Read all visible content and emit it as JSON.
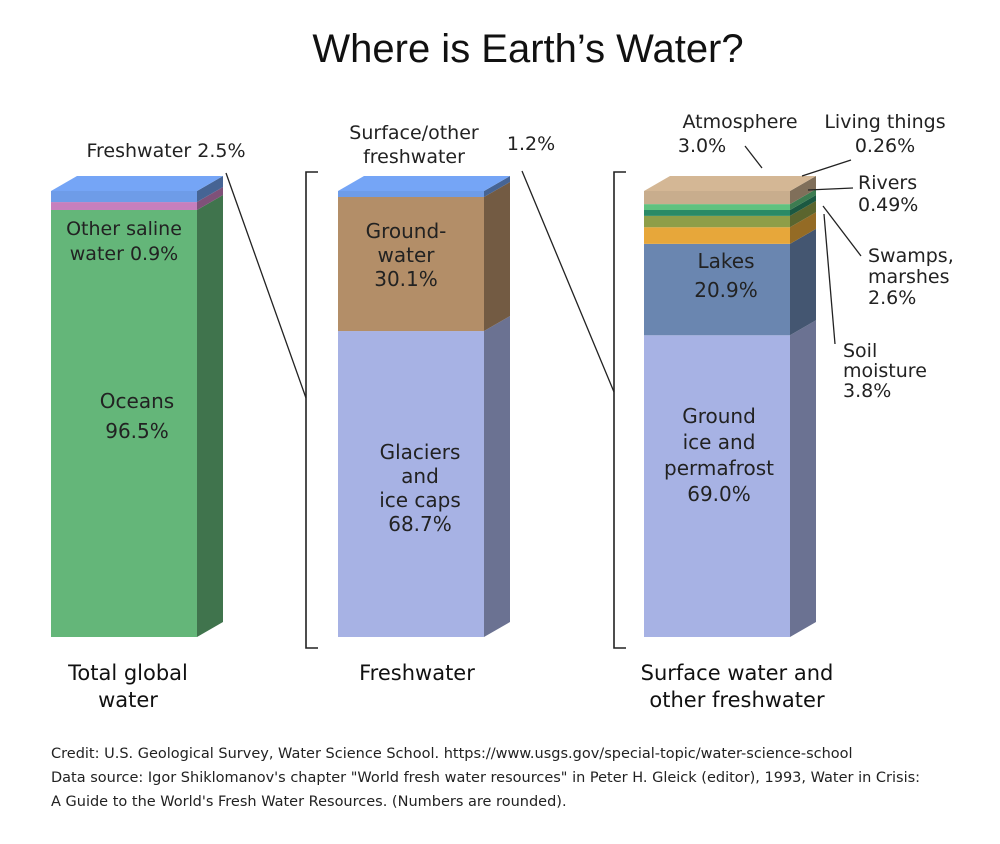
{
  "title": "Where is Earth’s Water?",
  "chart_data": [
    {
      "type": "bar",
      "category": [
        "Total global",
        "water"
      ],
      "segments": [
        {
          "name": "Oceans",
          "value": 96.5,
          "label": [
            "Oceans",
            "96.5%"
          ],
          "color": "#64b679"
        },
        {
          "name": "Other saline water",
          "value": 0.9,
          "label": [
            "Other saline",
            "water 0.9%"
          ],
          "color": "#c77fbd"
        },
        {
          "name": "Freshwater",
          "value": 2.5,
          "label": [
            "Freshwater 2.5%"
          ],
          "color": "#6e9ce8"
        }
      ]
    },
    {
      "type": "bar",
      "category": [
        "Freshwater"
      ],
      "segments": [
        {
          "name": "Glaciers and ice caps",
          "value": 68.7,
          "label": [
            "Glaciers",
            "and",
            "ice caps",
            "68.7%"
          ],
          "color": "#a7b2e4"
        },
        {
          "name": "Ground-water",
          "value": 30.1,
          "label": [
            "Ground-",
            "water",
            "30.1%"
          ],
          "color": "#b38e68"
        },
        {
          "name": "Surface/other freshwater",
          "value": 1.2,
          "label": [
            "Surface/other",
            "freshwater",
            "1.2%"
          ],
          "color": "#6e9ce8"
        }
      ]
    },
    {
      "type": "bar",
      "category": [
        "Surface water and",
        "other freshwater"
      ],
      "segments": [
        {
          "name": "Ground ice and permafrost",
          "value": 69.0,
          "label": [
            "Ground",
            "ice and",
            "permafrost",
            "69.0%"
          ],
          "color": "#a7b2e4"
        },
        {
          "name": "Lakes",
          "value": 20.9,
          "label": [
            "Lakes",
            "20.9%"
          ],
          "color": "#6a86b0"
        },
        {
          "name": "Soil moisture",
          "value": 3.8,
          "label": [
            "Soil",
            "moisture",
            "3.8%"
          ],
          "color": "#e7a73a"
        },
        {
          "name": "Swamps, marshes",
          "value": 2.6,
          "label": [
            "Swamps,",
            "marshes",
            "2.6%"
          ],
          "color": "#8e9e48"
        },
        {
          "name": "Rivers",
          "value": 0.49,
          "label": [
            "Rivers",
            "0.49%"
          ],
          "color": "#2a8a66"
        },
        {
          "name": "Living things",
          "value": 0.26,
          "label": [
            "Living things",
            "0.26%"
          ],
          "color": "#5fc27f"
        },
        {
          "name": "Atmosphere",
          "value": 3.0,
          "label": [
            "Atmosphere",
            "3.0%"
          ],
          "color": "#c8ad8d"
        }
      ]
    }
  ],
  "credit": [
    "Credit: U.S. Geological Survey, Water Science School. https://www.usgs.gov/special-topic/water-science-school",
    "Data source: Igor Shiklomanov's chapter \"World fresh water resources\" in Peter H. Gleick (editor), 1993, Water in Crisis:",
    "A Guide to the World's Fresh Water Resources. (Numbers are rounded)."
  ]
}
